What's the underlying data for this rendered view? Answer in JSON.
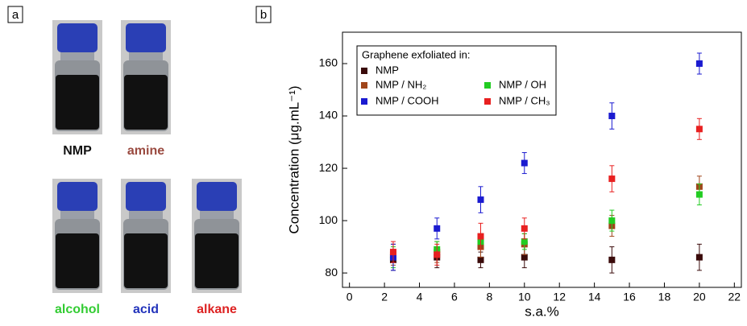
{
  "panels": {
    "a": {
      "label": "a",
      "vials": [
        {
          "label": "NMP",
          "color": "#111111"
        },
        {
          "label": "amine",
          "color": "#9a4a40"
        },
        {
          "label": "alcohol",
          "color": "#33cc33"
        },
        {
          "label": "acid",
          "color": "#2233bb"
        },
        {
          "label": "alkane",
          "color": "#dd2222"
        }
      ]
    },
    "b": {
      "label": "b"
    }
  },
  "chart_data": {
    "type": "scatter",
    "xlabel": "s.a.%",
    "ylabel": "Concentration (μg.mL⁻¹)",
    "legend_title": "Graphene exfoliated in:",
    "x": [
      2.5,
      5,
      7.5,
      10,
      15,
      20
    ],
    "series": [
      {
        "name": "NMP",
        "color": "#3a0a0a",
        "values": [
          85,
          86,
          85,
          86,
          85,
          86
        ],
        "errors": [
          4,
          4,
          3,
          4,
          5,
          5
        ]
      },
      {
        "name": "NMP / NH₂",
        "color": "#a0451a",
        "values": [
          87,
          88,
          90,
          91,
          98,
          113
        ],
        "errors": [
          4,
          4,
          4,
          4,
          4,
          4
        ]
      },
      {
        "name": "NMP / OH",
        "color": "#22cc22",
        "values": [
          86,
          89,
          92,
          92,
          100,
          110
        ],
        "errors": [
          4,
          3,
          3,
          3,
          4,
          4
        ]
      },
      {
        "name": "NMP / COOH",
        "color": "#1a1ad0",
        "values": [
          86,
          97,
          108,
          122,
          140,
          160
        ],
        "errors": [
          5,
          4,
          5,
          4,
          5,
          4
        ]
      },
      {
        "name": "NMP / CH₃",
        "color": "#e82020",
        "values": [
          88,
          87,
          94,
          97,
          116,
          135
        ],
        "errors": [
          4,
          4,
          5,
          4,
          5,
          4
        ]
      }
    ],
    "xlim": [
      -0.4,
      22.4
    ],
    "ylim": [
      74.5,
      172
    ],
    "xticks": [
      0,
      2,
      4,
      6,
      8,
      10,
      12,
      14,
      16,
      18,
      20,
      22
    ],
    "yticks": [
      80,
      100,
      120,
      140,
      160
    ]
  }
}
